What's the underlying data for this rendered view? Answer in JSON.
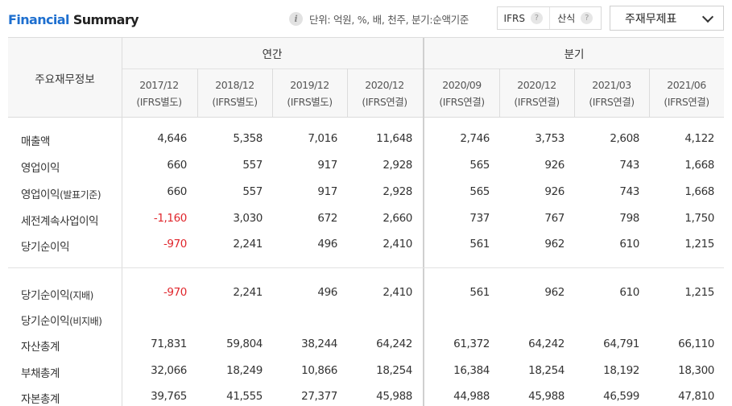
{
  "header": {
    "title_part1": "Financial",
    "title_part2": "Summary",
    "info_icon_glyph": "i",
    "unit_text": "단위: 억원, %, 배, 천주, 분기:순액기준",
    "ifrs_label": "IFRS",
    "calc_label": "산식",
    "help_glyph": "?",
    "select_label": "주재무제표"
  },
  "table": {
    "label_header": "주요재무정보",
    "group_annual": "연간",
    "group_quarterly": "분기",
    "columns": [
      {
        "period": "2017/12",
        "basis": "(IFRS별도)"
      },
      {
        "period": "2018/12",
        "basis": "(IFRS별도)"
      },
      {
        "period": "2019/12",
        "basis": "(IFRS별도)"
      },
      {
        "period": "2020/12",
        "basis": "(IFRS연결)"
      },
      {
        "period": "2020/09",
        "basis": "(IFRS연결)"
      },
      {
        "period": "2020/12",
        "basis": "(IFRS연결)"
      },
      {
        "period": "2021/03",
        "basis": "(IFRS연결)"
      },
      {
        "period": "2021/06",
        "basis": "(IFRS연결)"
      }
    ],
    "rows": [
      {
        "label": "매출액",
        "sub": "",
        "values": [
          "4,646",
          "5,358",
          "7,016",
          "11,648",
          "2,746",
          "3,753",
          "2,608",
          "4,122"
        ]
      },
      {
        "label": "영업이익",
        "sub": "",
        "values": [
          "660",
          "557",
          "917",
          "2,928",
          "565",
          "926",
          "743",
          "1,668"
        ]
      },
      {
        "label": "영업이익",
        "sub": "(발표기준)",
        "values": [
          "660",
          "557",
          "917",
          "2,928",
          "565",
          "926",
          "743",
          "1,668"
        ]
      },
      {
        "label": "세전계속사업이익",
        "sub": "",
        "values": [
          "-1,160",
          "3,030",
          "672",
          "2,660",
          "737",
          "767",
          "798",
          "1,750"
        ]
      },
      {
        "label": "당기순이익",
        "sub": "",
        "values": [
          "-970",
          "2,241",
          "496",
          "2,410",
          "561",
          "962",
          "610",
          "1,215"
        ]
      },
      {
        "label": "당기순이익",
        "sub": "(지배)",
        "values": [
          "-970",
          "2,241",
          "496",
          "2,410",
          "561",
          "962",
          "610",
          "1,215"
        ]
      },
      {
        "label": "당기순이익",
        "sub": "(비지배)",
        "values": [
          "",
          "",
          "",
          "",
          "",
          "",
          "",
          ""
        ]
      },
      {
        "label": "자산총계",
        "sub": "",
        "values": [
          "71,831",
          "59,804",
          "38,244",
          "64,242",
          "61,372",
          "64,242",
          "64,791",
          "66,110"
        ]
      },
      {
        "label": "부채총계",
        "sub": "",
        "values": [
          "32,066",
          "18,249",
          "10,866",
          "18,254",
          "16,384",
          "18,254",
          "18,192",
          "18,300"
        ]
      },
      {
        "label": "자본총계",
        "sub": "",
        "values": [
          "39,765",
          "41,555",
          "27,377",
          "45,988",
          "44,988",
          "45,988",
          "46,599",
          "47,810"
        ]
      }
    ]
  }
}
